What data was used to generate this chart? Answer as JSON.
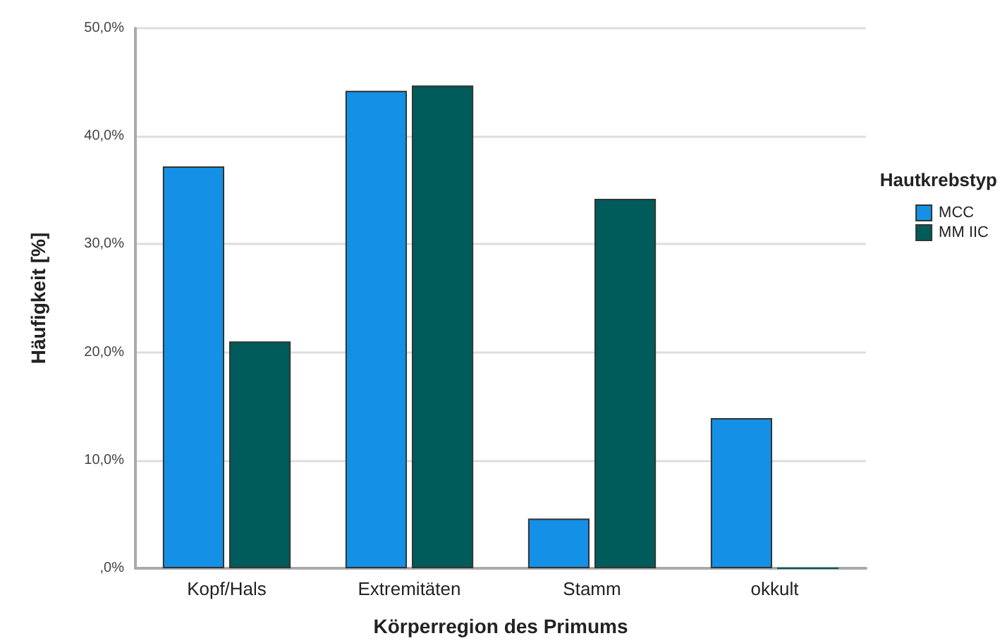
{
  "chart_data": {
    "type": "bar",
    "xlabel": "Körperregion des Primums",
    "ylabel": "Häufigkeit [%]",
    "legend_title": "Hautkrebstyp",
    "categories": [
      "Kopf/Hals",
      "Extremitäten",
      "Stamm",
      "okkult"
    ],
    "series": [
      {
        "name": "MCC",
        "color": "#1490e6",
        "values": [
          37.2,
          44.2,
          4.6,
          13.9
        ]
      },
      {
        "name": "MM IIC",
        "color": "#005b5b",
        "values": [
          21.0,
          44.7,
          34.2,
          0
        ]
      }
    ],
    "ylim": [
      0,
      50
    ],
    "yticks": [
      {
        "value": 0,
        "label": ",0%"
      },
      {
        "value": 10,
        "label": "10,0%"
      },
      {
        "value": 20,
        "label": "20,0%"
      },
      {
        "value": 30,
        "label": "30,0%"
      },
      {
        "value": 40,
        "label": "40,0%"
      },
      {
        "value": 50,
        "label": "50,0%"
      }
    ],
    "grid": "y",
    "legend": "right"
  }
}
